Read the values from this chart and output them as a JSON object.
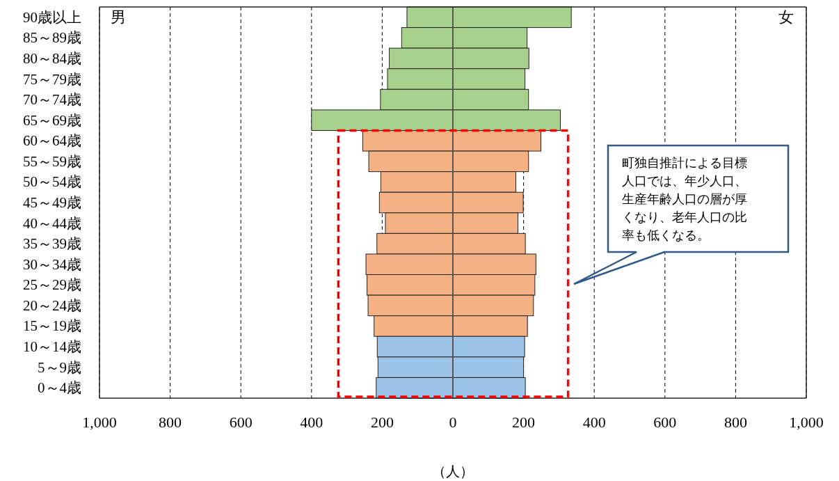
{
  "chart_data": {
    "type": "bar",
    "orientation": "horizontal",
    "stacked": true,
    "grid": "x",
    "categories": [
      "90歳以上",
      "85～89歳",
      "80～84歳",
      "75～79歳",
      "70～74歳",
      "65～69歳",
      "60～64歳",
      "55～59歳",
      "50～54歳",
      "45～49歳",
      "40～44歳",
      "35～39歳",
      "30～34歳",
      "25～29歳",
      "20～24歳",
      "15～19歳",
      "10～14歳",
      "5～9歳",
      "0～4歳"
    ],
    "series": [
      {
        "values": [
          -130,
          -145,
          -180,
          -185,
          -205,
          -400,
          -255,
          -238,
          -204,
          -208,
          -191,
          -215,
          -246,
          -243,
          -240,
          -223,
          -214,
          -212,
          -217
        ],
        "colors": [
          "#a9d18e",
          "#a9d18e",
          "#a9d18e",
          "#a9d18e",
          "#a9d18e",
          "#a9d18e",
          "#f4b183",
          "#f4b183",
          "#f4b183",
          "#f4b183",
          "#f4b183",
          "#f4b183",
          "#f4b183",
          "#f4b183",
          "#f4b183",
          "#f4b183",
          "#9dc3e6",
          "#9dc3e6",
          "#9dc3e6"
        ]
      },
      {
        "values": [
          335,
          210,
          215,
          204,
          214,
          304,
          249,
          214,
          178,
          199,
          184,
          205,
          235,
          232,
          228,
          211,
          203,
          200,
          205
        ],
        "colors": [
          "#a9d18e",
          "#a9d18e",
          "#a9d18e",
          "#a9d18e",
          "#a9d18e",
          "#a9d18e",
          "#f4b183",
          "#f4b183",
          "#f4b183",
          "#f4b183",
          "#f4b183",
          "#f4b183",
          "#f4b183",
          "#f4b183",
          "#f4b183",
          "#f4b183",
          "#9dc3e6",
          "#9dc3e6",
          "#9dc3e6"
        ]
      }
    ],
    "xlim": [
      -1000,
      1000
    ],
    "xticks": [
      {
        "value": -1000,
        "label": "1,000"
      },
      {
        "value": -800,
        "label": "800"
      },
      {
        "value": -600,
        "label": "600"
      },
      {
        "value": -400,
        "label": "400"
      },
      {
        "value": -200,
        "label": "200"
      },
      0,
      200,
      400,
      600,
      800,
      {
        "value": 1000,
        "label": "1,000"
      }
    ],
    "xlabel": "（人）",
    "annotations": [
      "男",
      "女",
      "町独自推計による目標人口では、年少人口、生産年齢人口の層が厚くなり、老年人口の比率も低くなる。"
    ]
  }
}
